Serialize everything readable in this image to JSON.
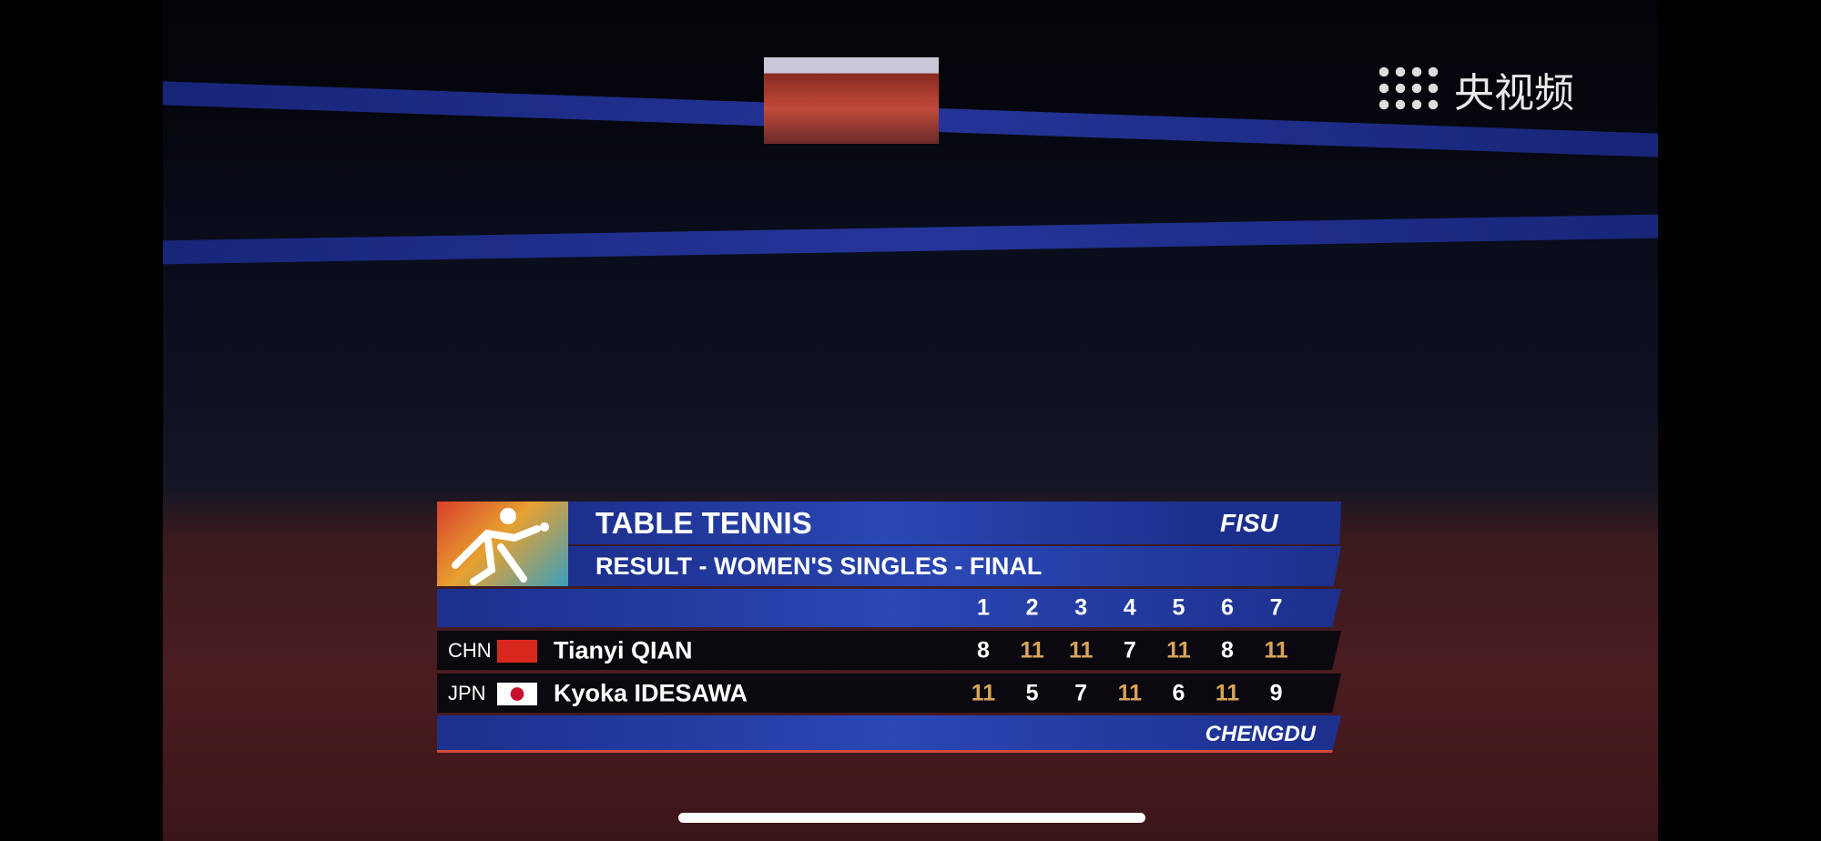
{
  "watermark": "央视频",
  "scoreboard": {
    "sport": "TABLE TENNIS",
    "event": "RESULT - WOMEN'S SINGLES - FINAL",
    "logo": "FISU",
    "games": [
      "1",
      "2",
      "3",
      "4",
      "5",
      "6",
      "7"
    ],
    "players": [
      {
        "country": "CHN",
        "name": "Tianyi QIAN",
        "scores": [
          8,
          11,
          11,
          7,
          11,
          8,
          11
        ]
      },
      {
        "country": "JPN",
        "name": "Kyoka IDESAWA",
        "scores": [
          11,
          5,
          7,
          11,
          6,
          11,
          9
        ]
      }
    ],
    "venue": "CHENGDU"
  }
}
